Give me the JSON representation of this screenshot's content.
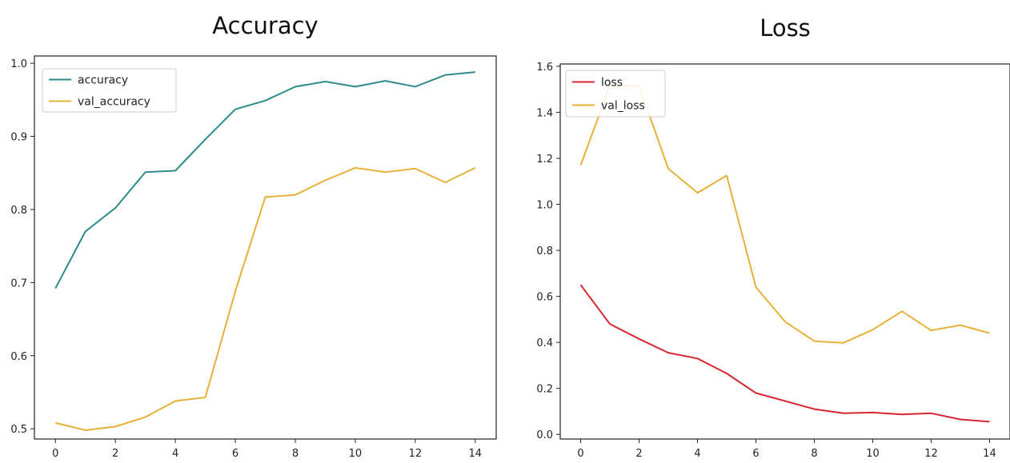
{
  "chart_data": [
    {
      "type": "line",
      "title": "Accuracy",
      "xlabel": "",
      "ylabel": "",
      "xlim": [
        -0.7,
        14.7
      ],
      "ylim": [
        0.486,
        1.01
      ],
      "xticks": [
        0,
        2,
        4,
        6,
        8,
        10,
        12,
        14
      ],
      "yticks": [
        0.5,
        0.6,
        0.7,
        0.8,
        0.9,
        1.0
      ],
      "ytick_labels": [
        "0.5",
        "0.6",
        "0.7",
        "0.8",
        "0.9",
        "1.0"
      ],
      "grid": false,
      "legend_position": "upper-left",
      "x": [
        0,
        1,
        2,
        3,
        4,
        5,
        6,
        7,
        8,
        9,
        10,
        11,
        12,
        13,
        14
      ],
      "series": [
        {
          "name": "accuracy",
          "color": "#2e8b8b",
          "values": [
            0.692,
            0.77,
            0.802,
            0.851,
            0.853,
            0.896,
            0.937,
            0.949,
            0.968,
            0.975,
            0.968,
            0.976,
            0.968,
            0.984,
            0.988
          ]
        },
        {
          "name": "val_accuracy",
          "color": "#e6b13a",
          "values": [
            0.508,
            0.498,
            0.503,
            0.516,
            0.538,
            0.543,
            0.688,
            0.817,
            0.82,
            0.84,
            0.857,
            0.851,
            0.856,
            0.837,
            0.857
          ]
        }
      ]
    },
    {
      "type": "line",
      "title": "Loss",
      "xlabel": "",
      "ylabel": "",
      "xlim": [
        -0.7,
        14.7
      ],
      "ylim": [
        -0.02,
        1.61
      ],
      "xticks": [
        0,
        2,
        4,
        6,
        8,
        10,
        12,
        14
      ],
      "yticks": [
        0.0,
        0.2,
        0.4,
        0.6,
        0.8,
        1.0,
        1.2,
        1.4,
        1.6
      ],
      "ytick_labels": [
        "0.0",
        "0.2",
        "0.4",
        "0.6",
        "0.8",
        "1.0",
        "1.2",
        "1.4",
        "1.6"
      ],
      "grid": false,
      "legend_position": "upper-left",
      "x": [
        0,
        1,
        2,
        3,
        4,
        5,
        6,
        7,
        8,
        9,
        10,
        11,
        12,
        13,
        14
      ],
      "series": [
        {
          "name": "loss",
          "color": "#d62731",
          "values": [
            0.65,
            0.48,
            0.415,
            0.355,
            0.33,
            0.265,
            0.18,
            0.145,
            0.11,
            0.092,
            0.095,
            0.087,
            0.092,
            0.065,
            0.055
          ]
        },
        {
          "name": "val_loss",
          "color": "#e6b13a",
          "values": [
            1.17,
            1.515,
            1.515,
            1.155,
            1.05,
            1.125,
            0.64,
            0.49,
            0.405,
            0.398,
            0.455,
            0.535,
            0.452,
            0.475,
            0.44
          ]
        }
      ]
    }
  ]
}
